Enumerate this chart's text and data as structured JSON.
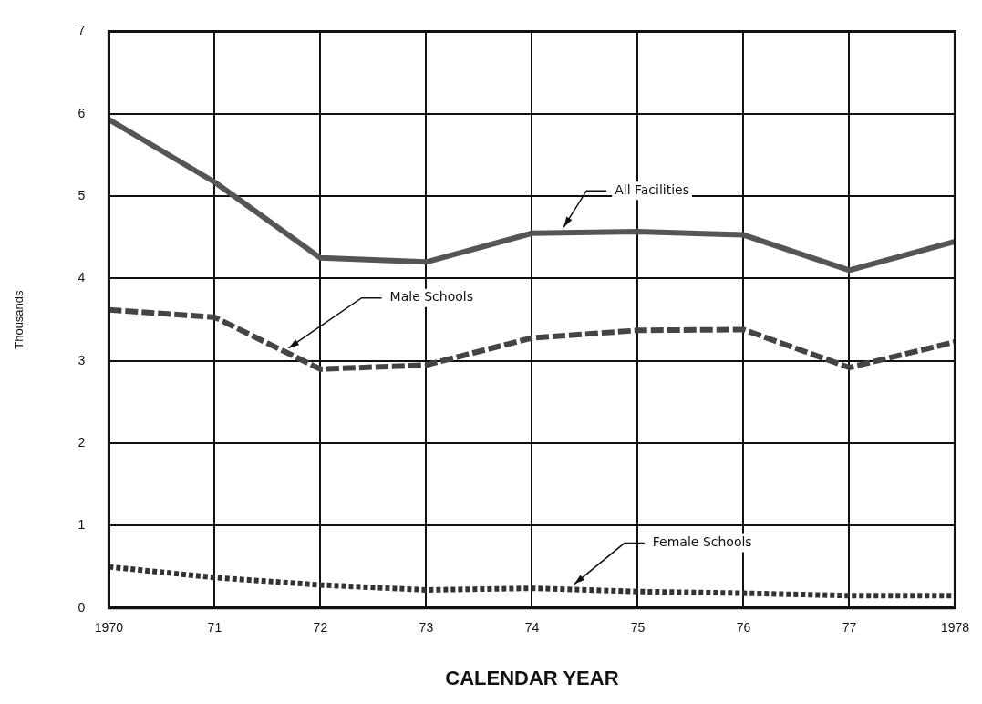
{
  "chart_data": {
    "type": "line",
    "xlabel": "CALENDAR YEAR",
    "ylabel": "Thousands",
    "x": [
      1970,
      1971,
      1972,
      1973,
      1974,
      1975,
      1976,
      1977,
      1978
    ],
    "series": [
      {
        "name": "All Facilities",
        "color": "#555555",
        "line_style": "solid",
        "values": [
          5.93,
          5.17,
          4.25,
          4.2,
          4.55,
          4.57,
          4.53,
          4.1,
          4.45
        ]
      },
      {
        "name": "Male Schools",
        "color": "#444444",
        "line_style": "dashed",
        "values": [
          3.62,
          3.53,
          2.9,
          2.95,
          3.28,
          3.37,
          3.38,
          2.92,
          3.23
        ]
      },
      {
        "name": "Female Schools",
        "color": "#333333",
        "line_style": "dotted",
        "values": [
          0.5,
          0.37,
          0.28,
          0.22,
          0.24,
          0.2,
          0.18,
          0.15,
          0.15
        ]
      }
    ],
    "xlim": [
      1970,
      1978
    ],
    "xticks": [
      1970,
      {
        "value": 1971,
        "label": "71"
      },
      {
        "value": 1972,
        "label": "72"
      },
      {
        "value": 1973,
        "label": "73"
      },
      {
        "value": 1974,
        "label": "74"
      },
      {
        "value": 1975,
        "label": "75"
      },
      {
        "value": 1976,
        "label": "76"
      },
      {
        "value": 1977,
        "label": "77"
      },
      1978
    ],
    "ylim": [
      0,
      7
    ],
    "yticks": [
      0,
      1,
      2,
      3,
      4,
      5,
      6,
      7
    ],
    "grid": true,
    "legend": false,
    "marker": "none"
  }
}
